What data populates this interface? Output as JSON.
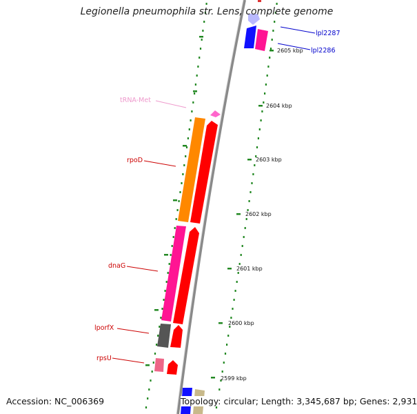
{
  "title": "Legionella pneumophila str. Lens, complete genome",
  "footer": {
    "accession": "Accession: NC_006369",
    "summary": "Topology: circular; Length: 3,345,687 bp; Genes: 2,931"
  },
  "scale_ticks": [
    "2605 kbp",
    "2604 kbp",
    "2603 kbp",
    "2602 kbp",
    "2601 kbp",
    "2600 kbp",
    "2599 kbp"
  ],
  "features": [
    {
      "label": "lpl2287",
      "color": "#0000cc",
      "strand": "forward"
    },
    {
      "label": "lpl2286",
      "color": "#0000cc",
      "strand": "forward"
    },
    {
      "label": "tRNA-Met",
      "color": "#ee99cc",
      "strand": "reverse"
    },
    {
      "label": "rpoD",
      "color": "#cc0000",
      "strand": "reverse"
    },
    {
      "label": "dnaG",
      "color": "#cc0000",
      "strand": "reverse"
    },
    {
      "label": "lporfX",
      "color": "#cc0000",
      "strand": "reverse"
    },
    {
      "label": "rpsU",
      "color": "#cc0000",
      "strand": "reverse"
    }
  ],
  "legend_colors": {
    "backbone": "#888888",
    "ticks": "#228822",
    "orange_block": "#ff8800",
    "magenta_block": "#ff1493",
    "gray_block": "#555555",
    "red_arrow": "#ff0000",
    "blue_arrow": "#1111ff",
    "pink_block": "#ee6688",
    "tan_block": "#c8b98a"
  }
}
